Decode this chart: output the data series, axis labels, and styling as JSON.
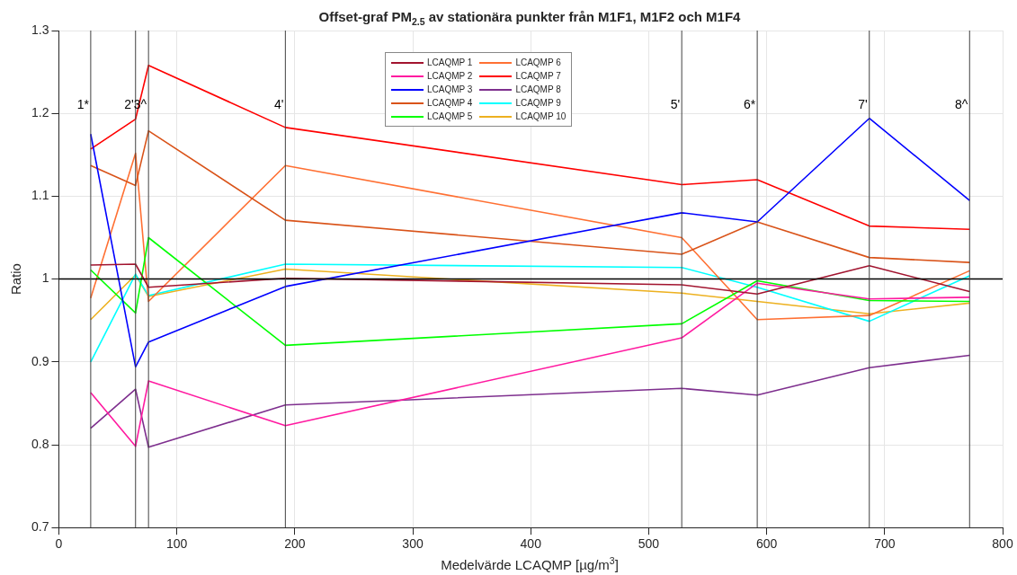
{
  "chart_data": {
    "type": "line",
    "title": "Offset-graf PM$_{2.5}$  av stationära punkter från M1F1, M1F2 och M1F4",
    "xlabel": "Medelvärde LCAQMP [µg/m$^{3}$]",
    "ylabel": "Ratio",
    "x": [
      27,
      65,
      76,
      192,
      528,
      592,
      687,
      772
    ],
    "series": [
      {
        "name": "LCAQMP 1",
        "color": "#a2142f",
        "values": [
          1.017,
          1.018,
          0.99,
          1.001,
          0.993,
          0.982,
          1.016,
          0.985
        ]
      },
      {
        "name": "LCAQMP 2",
        "color": "#ff1aa0",
        "values": [
          0.863,
          0.798,
          0.877,
          0.823,
          0.929,
          0.995,
          0.976,
          0.978
        ]
      },
      {
        "name": "LCAQMP 3",
        "color": "#0000ff",
        "values": [
          1.175,
          0.894,
          0.924,
          0.991,
          1.08,
          1.069,
          1.194,
          1.095
        ]
      },
      {
        "name": "LCAQMP 4",
        "color": "#d95319",
        "values": [
          1.137,
          1.113,
          1.179,
          1.071,
          1.03,
          1.069,
          1.026,
          1.02
        ]
      },
      {
        "name": "LCAQMP 5",
        "color": "#00ff00",
        "values": [
          1.011,
          0.959,
          1.05,
          0.92,
          0.946,
          0.998,
          0.974,
          0.973
        ]
      },
      {
        "name": "LCAQMP 6",
        "color": "#ff7033",
        "values": [
          0.977,
          1.152,
          0.973,
          1.137,
          1.05,
          0.951,
          0.956,
          1.01
        ]
      },
      {
        "name": "LCAQMP 7",
        "color": "#ff0000",
        "values": [
          1.157,
          1.193,
          1.258,
          1.183,
          1.114,
          1.12,
          1.064,
          1.06
        ]
      },
      {
        "name": "LCAQMP 8",
        "color": "#7e2f8e",
        "values": [
          0.82,
          0.867,
          0.797,
          0.848,
          0.868,
          0.86,
          0.893,
          0.908
        ]
      },
      {
        "name": "LCAQMP 9",
        "color": "#00ffff",
        "values": [
          0.9,
          1.006,
          0.98,
          1.018,
          1.014,
          0.99,
          0.949,
          1.004
        ]
      },
      {
        "name": "LCAQMP 10",
        "color": "#edb120",
        "values": [
          0.951,
          1.005,
          0.979,
          1.012,
          0.983,
          0.973,
          0.958,
          0.971
        ]
      }
    ],
    "ref_lines": [
      {
        "axis": "y",
        "value": 1,
        "label": null,
        "color": "#000000"
      },
      {
        "axis": "x",
        "value": 27,
        "label": null,
        "color": "#404040"
      },
      {
        "axis": "x",
        "value": 65,
        "label": null,
        "color": "#404040"
      },
      {
        "axis": "x",
        "value": 76,
        "label": null,
        "color": "#404040"
      },
      {
        "axis": "x",
        "value": 192,
        "label": null,
        "color": "#404040"
      },
      {
        "axis": "x",
        "value": 528,
        "label": null,
        "color": "#404040"
      },
      {
        "axis": "x",
        "value": 592,
        "label": null,
        "color": "#404040"
      },
      {
        "axis": "x",
        "value": 687,
        "label": null,
        "color": "#404040"
      },
      {
        "axis": "x",
        "value": 772,
        "label": null,
        "color": "#404040"
      }
    ],
    "annotations": [
      {
        "text": "1*",
        "x": 27,
        "y": 1.21
      },
      {
        "text": "2'",
        "x": 65,
        "y": 1.21
      },
      {
        "text": "3^",
        "x": 76,
        "y": 1.21
      },
      {
        "text": "4'",
        "x": 192,
        "y": 1.21
      },
      {
        "text": "5'",
        "x": 528,
        "y": 1.21
      },
      {
        "text": "6*",
        "x": 592,
        "y": 1.21
      },
      {
        "text": "7'",
        "x": 687,
        "y": 1.21
      },
      {
        "text": "8^",
        "x": 772,
        "y": 1.21
      }
    ],
    "xlim": [
      0,
      800
    ],
    "xticks": [
      0,
      100,
      200,
      300,
      400,
      500,
      600,
      700,
      800
    ],
    "ylim": [
      0.7,
      1.3
    ],
    "yticks": [
      0.7,
      0.8,
      0.9,
      1,
      1.1,
      1.2,
      1.3
    ],
    "grid": true,
    "legend": "top",
    "marker": "none",
    "line_style": "solid"
  }
}
